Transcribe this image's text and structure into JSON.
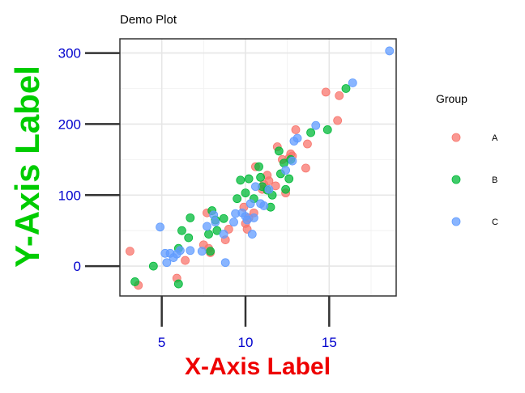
{
  "chart_data": {
    "type": "scatter",
    "title": "Demo Plot",
    "xlabel": "X-Axis Label",
    "ylabel": "Y-Axis Label",
    "xlim": [
      2.5,
      19
    ],
    "ylim": [
      -42,
      320
    ],
    "x_ticks": [
      5,
      10,
      15
    ],
    "y_ticks": [
      0,
      100,
      200,
      300
    ],
    "grid": true,
    "legend": {
      "title": "Group",
      "position": "right",
      "entries": [
        "A",
        "B",
        "C"
      ]
    },
    "colors": {
      "A": "#F8766D",
      "B": "#00BA38",
      "C": "#619CFF",
      "title": "#000000",
      "xlabel": "#EE0000",
      "ylabel": "#00CC00",
      "ticks": "#0000CD"
    },
    "series": [
      {
        "name": "A",
        "points": [
          [
            3.1,
            21
          ],
          [
            3.6,
            -27
          ],
          [
            5.9,
            -17
          ],
          [
            6.4,
            8
          ],
          [
            7.5,
            30
          ],
          [
            7.8,
            25
          ],
          [
            7.9,
            19
          ],
          [
            7.7,
            75
          ],
          [
            8.8,
            37
          ],
          [
            9.0,
            52
          ],
          [
            9.9,
            83
          ],
          [
            10.0,
            60
          ],
          [
            10.1,
            52
          ],
          [
            10.2,
            68
          ],
          [
            10.5,
            75
          ],
          [
            10.6,
            140
          ],
          [
            11.0,
            108
          ],
          [
            11.1,
            115
          ],
          [
            11.3,
            128
          ],
          [
            11.4,
            120
          ],
          [
            11.8,
            113
          ],
          [
            11.9,
            168
          ],
          [
            12.2,
            150
          ],
          [
            12.4,
            103
          ],
          [
            12.6,
            152
          ],
          [
            12.7,
            158
          ],
          [
            12.8,
            155
          ],
          [
            13.0,
            192
          ],
          [
            13.6,
            138
          ],
          [
            13.7,
            172
          ],
          [
            14.8,
            245
          ],
          [
            15.5,
            205
          ],
          [
            15.6,
            240
          ]
        ]
      },
      {
        "name": "B",
        "points": [
          [
            3.4,
            -22
          ],
          [
            4.5,
            0
          ],
          [
            6.0,
            25
          ],
          [
            6.0,
            -25
          ],
          [
            6.2,
            50
          ],
          [
            6.6,
            40
          ],
          [
            6.7,
            68
          ],
          [
            7.8,
            45
          ],
          [
            7.9,
            21
          ],
          [
            8.0,
            78
          ],
          [
            8.2,
            65
          ],
          [
            8.3,
            50
          ],
          [
            8.7,
            67
          ],
          [
            9.5,
            95
          ],
          [
            9.7,
            121
          ],
          [
            10.0,
            103
          ],
          [
            10.2,
            123
          ],
          [
            10.5,
            95
          ],
          [
            10.8,
            140
          ],
          [
            10.9,
            125
          ],
          [
            11.0,
            112
          ],
          [
            11.3,
            107
          ],
          [
            11.5,
            83
          ],
          [
            11.6,
            100
          ],
          [
            12.0,
            162
          ],
          [
            12.1,
            130
          ],
          [
            12.3,
            145
          ],
          [
            12.4,
            108
          ],
          [
            12.6,
            123
          ],
          [
            12.7,
            150
          ],
          [
            13.9,
            188
          ],
          [
            14.9,
            192
          ],
          [
            16.0,
            250
          ]
        ]
      },
      {
        "name": "C",
        "points": [
          [
            4.9,
            55
          ],
          [
            5.2,
            18
          ],
          [
            5.3,
            5
          ],
          [
            5.5,
            18
          ],
          [
            5.7,
            12
          ],
          [
            5.9,
            17
          ],
          [
            6.1,
            22
          ],
          [
            6.7,
            22
          ],
          [
            7.4,
            21
          ],
          [
            7.7,
            56
          ],
          [
            8.1,
            72
          ],
          [
            8.2,
            62
          ],
          [
            8.7,
            45
          ],
          [
            8.8,
            5
          ],
          [
            9.3,
            62
          ],
          [
            9.4,
            74
          ],
          [
            9.8,
            75
          ],
          [
            10.0,
            70
          ],
          [
            10.1,
            65
          ],
          [
            10.3,
            88
          ],
          [
            10.4,
            45
          ],
          [
            10.5,
            68
          ],
          [
            10.6,
            112
          ],
          [
            10.9,
            88
          ],
          [
            11.1,
            85
          ],
          [
            11.4,
            108
          ],
          [
            12.4,
            135
          ],
          [
            12.8,
            148
          ],
          [
            12.9,
            176
          ],
          [
            13.1,
            180
          ],
          [
            14.2,
            198
          ],
          [
            16.4,
            258
          ],
          [
            18.6,
            303
          ]
        ]
      }
    ]
  }
}
